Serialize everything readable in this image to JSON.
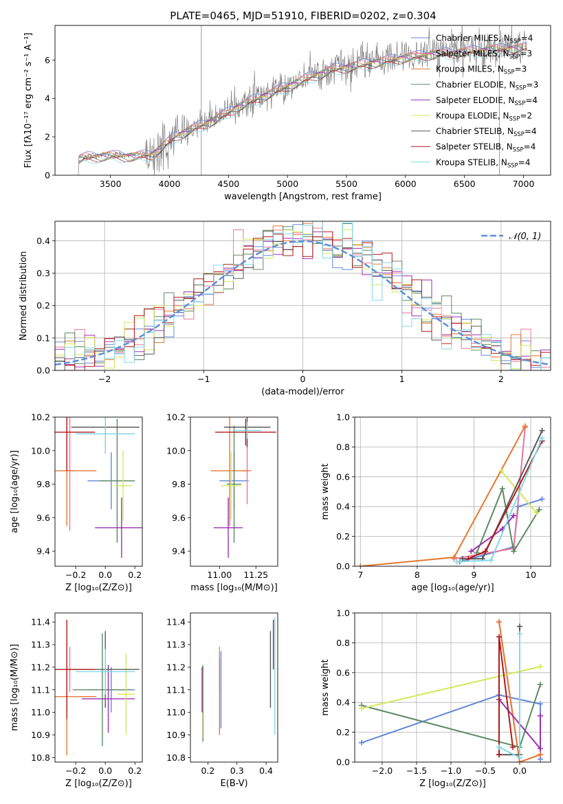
{
  "figure": {
    "title": "PLATE=0465, MJD=51910, FIBERID=0202, z=0.304"
  },
  "models": [
    {
      "name": "Chabrier MILES",
      "nssp": "4",
      "color": "#6287d9"
    },
    {
      "name": "Salpeter MILES",
      "nssp": "3",
      "color": "#e8769c"
    },
    {
      "name": "Kroupa MILES",
      "nssp": "3",
      "color": "#e6762e"
    },
    {
      "name": "Chabrier ELODIE",
      "nssp": "3",
      "color": "#5b8a62"
    },
    {
      "name": "Salpeter ELODIE",
      "nssp": "4",
      "color": "#9a2fb0"
    },
    {
      "name": "Kroupa ELODIE",
      "nssp": "2",
      "color": "#d4e85a"
    },
    {
      "name": "Chabrier STELIB",
      "nssp": "4",
      "color": "#585858"
    },
    {
      "name": "Salpeter STELIB",
      "nssp": "4",
      "color": "#b01818"
    },
    {
      "name": "Kroupa STELIB",
      "nssp": "4",
      "color": "#7fd8e8"
    }
  ],
  "chart_data": [
    {
      "id": "spectrum",
      "type": "line",
      "xlabel": "wavelength [Angstrom, rest frame]",
      "ylabel": "Flux [fλ10⁻¹⁷ erg cm⁻² s⁻¹ A⁻¹]",
      "xlim": [
        3030,
        7230
      ],
      "ylim": [
        0,
        7.8
      ],
      "xticks": [
        3500,
        4000,
        4500,
        5000,
        5500,
        6000,
        6500,
        7000
      ],
      "yticks": [
        0,
        2,
        4,
        6
      ],
      "data_color": "#808080",
      "continuum": {
        "x": [
          3200,
          3280,
          3500,
          3700,
          3850,
          3950,
          4050,
          4200,
          4400,
          4600,
          4800,
          5000,
          5200,
          5400,
          5600,
          5800,
          6000,
          6200,
          6400,
          6600,
          6800,
          7030
        ],
        "y": [
          0.85,
          1.0,
          1.1,
          1.05,
          1.15,
          1.6,
          2.1,
          2.5,
          3.0,
          3.7,
          4.2,
          4.7,
          5.2,
          5.6,
          5.8,
          6.0,
          6.2,
          6.35,
          6.45,
          6.55,
          6.65,
          6.7
        ]
      }
    },
    {
      "id": "residuals",
      "type": "area",
      "xlabel": "(data-model)/error",
      "ylabel": "Normed distribution",
      "xlim": [
        -2.5,
        2.5
      ],
      "ylim": [
        0,
        0.46
      ],
      "xticks": [
        -2,
        -1,
        0,
        1,
        2
      ],
      "yticks": [
        0.0,
        0.1,
        0.2,
        0.3,
        0.4
      ],
      "bin_width": 0.1,
      "gaussian_label": "𝒩(0, 1)",
      "gaussian_color": "#5b8fd9",
      "grid": true,
      "legend_position": "top-right"
    },
    {
      "id": "age-vs-Z",
      "type": "scatter",
      "xlabel": "Z [log₁₀(Z/Z⊙)]",
      "ylabel": "age  [log₁₀(age/yr)]",
      "xlim": [
        -0.34,
        0.25
      ],
      "ylim": [
        9.31,
        10.2
      ],
      "xticks": [
        -0.2,
        0.0,
        0.2
      ],
      "yticks": [
        9.4,
        9.6,
        9.8,
        10.0,
        10.2
      ],
      "series": [
        {
          "name": "Chabrier MILES",
          "x": 0.04,
          "y": 9.82,
          "xerr": 0.16,
          "yerr": 0.17
        },
        {
          "name": "Salpeter MILES",
          "x": -0.24,
          "y": 9.88,
          "xerr": 0.03,
          "yerr": 0.36
        },
        {
          "name": "Kroupa MILES",
          "x": -0.26,
          "y": 9.88,
          "xerr": 0.2,
          "yerr": 0.33
        },
        {
          "name": "Chabrier ELODIE",
          "x": 0.08,
          "y": 9.82,
          "xerr": 0.12,
          "yerr": 0.37
        },
        {
          "name": "Salpeter ELODIE",
          "x": 0.11,
          "y": 9.54,
          "xerr": 0.18,
          "yerr": 0.18
        },
        {
          "name": "Kroupa ELODIE",
          "x": 0.12,
          "y": 9.79,
          "xerr": 0.06,
          "yerr": 0.21
        },
        {
          "name": "Chabrier STELIB",
          "x": 0.0,
          "y": 10.14,
          "xerr": 0.23,
          "yerr": 0.12
        },
        {
          "name": "Salpeter STELIB",
          "x": -0.26,
          "y": 10.11,
          "xerr": 0.19,
          "yerr": 0.23
        },
        {
          "name": "Kroupa STELIB",
          "x": 0.0,
          "y": 10.1,
          "xerr": 0.2,
          "yerr": 0.12
        }
      ]
    },
    {
      "id": "age-vs-mass",
      "type": "scatter",
      "xlabel": "mass [log₁₀(M/M⊙)]",
      "ylabel": "",
      "xlim": [
        10.8,
        11.4
      ],
      "ylim": [
        9.31,
        10.2
      ],
      "xticks": [
        11.0,
        11.25
      ],
      "yticks": [
        9.4,
        9.6,
        9.8,
        10.0,
        10.2
      ],
      "series": [
        {
          "name": "Chabrier MILES",
          "x": 11.1,
          "y": 9.82,
          "xerr": 0.1,
          "yerr": 0.17
        },
        {
          "name": "Salpeter MILES",
          "x": 11.19,
          "y": 9.88,
          "xerr": 0.03,
          "yerr": 0.2
        },
        {
          "name": "Kroupa MILES",
          "x": 11.07,
          "y": 9.88,
          "xerr": 0.13,
          "yerr": 0.33
        },
        {
          "name": "Chabrier ELODIE",
          "x": 11.1,
          "y": 9.8,
          "xerr": 0.05,
          "yerr": 0.35
        },
        {
          "name": "Salpeter ELODIE",
          "x": 11.06,
          "y": 9.54,
          "xerr": 0.1,
          "yerr": 0.18
        },
        {
          "name": "Kroupa ELODIE",
          "x": 11.08,
          "y": 9.79,
          "xerr": 0.07,
          "yerr": 0.2
        },
        {
          "name": "Chabrier STELIB",
          "x": 11.19,
          "y": 10.14,
          "xerr": 0.16,
          "yerr": 0.12
        },
        {
          "name": "Salpeter STELIB",
          "x": 11.18,
          "y": 10.11,
          "xerr": 0.21,
          "yerr": 0.08
        },
        {
          "name": "Kroupa STELIB",
          "x": 11.19,
          "y": 10.12,
          "xerr": 0.1,
          "yerr": 0.05
        }
      ]
    },
    {
      "id": "mass-weight-vs-age",
      "type": "line",
      "xlabel": "age  [log₁₀(age/yr)]",
      "ylabel": "mass weight",
      "xlim": [
        6.9,
        10.35
      ],
      "ylim": [
        0,
        1.0
      ],
      "xticks": [
        7,
        8,
        9,
        10
      ],
      "yticks": [
        0.0,
        0.2,
        0.4,
        0.6,
        0.8,
        1.0
      ],
      "grid": true,
      "series": [
        {
          "name": "Chabrier MILES",
          "x": [
            8.75,
            9.7,
            9.78,
            10.2
          ],
          "y": [
            0.03,
            0.13,
            0.4,
            0.45
          ]
        },
        {
          "name": "Salpeter MILES",
          "x": [
            8.65,
            9.7,
            9.9
          ],
          "y": [
            0.05,
            0.12,
            0.93
          ]
        },
        {
          "name": "Kroupa MILES",
          "x": [
            7.0,
            8.65,
            9.9
          ],
          "y": [
            0.0,
            0.06,
            0.94
          ]
        },
        {
          "name": "Chabrier ELODIE",
          "x": [
            9.05,
            9.5,
            9.7,
            10.15
          ],
          "y": [
            0.09,
            0.52,
            0.1,
            0.38
          ]
        },
        {
          "name": "Salpeter ELODIE",
          "x": [
            8.95,
            9.5,
            9.7
          ],
          "y": [
            0.1,
            0.25,
            0.34
          ]
        },
        {
          "name": "Kroupa ELODIE",
          "x": [
            9.48,
            10.1
          ],
          "y": [
            0.64,
            0.36
          ]
        },
        {
          "name": "Chabrier STELIB",
          "x": [
            8.8,
            9.15,
            10.2
          ],
          "y": [
            0.05,
            0.05,
            0.91
          ]
        },
        {
          "name": "Salpeter STELIB",
          "x": [
            8.9,
            9.2,
            10.2
          ],
          "y": [
            0.05,
            0.1,
            0.84
          ]
        },
        {
          "name": "Kroupa STELIB",
          "x": [
            8.7,
            9.3,
            10.2
          ],
          "y": [
            0.03,
            0.04,
            0.86
          ]
        }
      ]
    },
    {
      "id": "mass-vs-Z",
      "type": "scatter",
      "xlabel": "Z [log₁₀(Z/Z⊙)]",
      "ylabel": "mass [log₁₀(M/M⊙)]",
      "xlim": [
        -0.34,
        0.25
      ],
      "ylim": [
        10.78,
        11.44
      ],
      "xticks": [
        -0.2,
        0.0,
        0.2
      ],
      "yticks": [
        10.8,
        10.9,
        11.0,
        11.1,
        11.2,
        11.3,
        11.4
      ],
      "series": [
        {
          "name": "Chabrier MILES",
          "x": 0.04,
          "y": 11.1,
          "xerr": 0.16,
          "yerr": 0.1
        },
        {
          "name": "Salpeter MILES",
          "x": -0.24,
          "y": 11.19,
          "xerr": 0.03,
          "yerr": 0.1
        },
        {
          "name": "Kroupa MILES",
          "x": -0.26,
          "y": 11.07,
          "xerr": 0.2,
          "yerr": 0.26
        },
        {
          "name": "Chabrier ELODIE",
          "x": -0.02,
          "y": 11.1,
          "xerr": 0.2,
          "yerr": 0.25
        },
        {
          "name": "Salpeter ELODIE",
          "x": 0.02,
          "y": 11.06,
          "xerr": 0.18,
          "yerr": 0.15
        },
        {
          "name": "Kroupa ELODIE",
          "x": 0.14,
          "y": 11.08,
          "xerr": 0.06,
          "yerr": 0.18
        },
        {
          "name": "Chabrier STELIB",
          "x": 0.0,
          "y": 11.19,
          "xerr": 0.23,
          "yerr": 0.17
        },
        {
          "name": "Salpeter STELIB",
          "x": -0.26,
          "y": 11.19,
          "xerr": 0.19,
          "yerr": 0.22
        },
        {
          "name": "Kroupa STELIB",
          "x": 0.0,
          "y": 11.18,
          "xerr": 0.2,
          "yerr": 0.1
        }
      ]
    },
    {
      "id": "mass-vs-EBV",
      "type": "scatter",
      "xlabel": "E(B-V)",
      "ylabel": "",
      "xlim": [
        0.14,
        0.44
      ],
      "ylim": [
        10.78,
        11.44
      ],
      "xticks": [
        0.2,
        0.3,
        0.4
      ],
      "yticks": [
        10.8,
        10.9,
        11.0,
        11.1,
        11.2,
        11.3,
        11.4
      ],
      "series": [
        {
          "name": "Chabrier MILES",
          "x": 0.245,
          "y": 11.1,
          "yerr": 0.17
        },
        {
          "name": "Salpeter MILES",
          "x": 0.24,
          "y": 11.19,
          "yerr": 0.1
        },
        {
          "name": "Kroupa MILES",
          "x": 0.24,
          "y": 11.07,
          "yerr": 0.17
        },
        {
          "name": "Chabrier ELODIE",
          "x": 0.183,
          "y": 11.04,
          "yerr": 0.17
        },
        {
          "name": "Salpeter ELODIE",
          "x": 0.18,
          "y": 11.1,
          "yerr": 0.1
        },
        {
          "name": "Kroupa ELODIE",
          "x": 0.185,
          "y": 11.04,
          "yerr": 0.15
        },
        {
          "name": "Chabrier STELIB",
          "x": 0.415,
          "y": 11.19,
          "yerr": 0.17
        },
        {
          "name": "Salpeter STELIB",
          "x": 0.425,
          "y": 11.3,
          "yerr": 0.11
        },
        {
          "name": "Kroupa STELIB",
          "x": 0.43,
          "y": 11.16,
          "yerr": 0.26
        }
      ]
    },
    {
      "id": "mass-weight-vs-Z",
      "type": "line",
      "xlabel": "Z [log₁₀(Z/Z⊙)]",
      "ylabel": "mass weight",
      "xlim": [
        -2.4,
        0.45
      ],
      "ylim": [
        0,
        1.0
      ],
      "xticks": [
        -2.0,
        -1.5,
        -1.0,
        -0.5,
        0.0
      ],
      "yticks": [
        0.0,
        0.2,
        0.4,
        0.6,
        0.8,
        1.0
      ],
      "grid": true,
      "series": [
        {
          "name": "Chabrier MILES",
          "x": [
            -2.3,
            -0.3,
            0.3,
            0.3
          ],
          "y": [
            0.13,
            0.45,
            0.39,
            0.02
          ]
        },
        {
          "name": "Salpeter MILES",
          "x": [
            -0.3,
            0.0,
            0.3
          ],
          "y": [
            0.94,
            0.0,
            0.05
          ]
        },
        {
          "name": "Kroupa MILES",
          "x": [
            -0.3,
            0.0,
            0.3
          ],
          "y": [
            0.94,
            0.0,
            0.05
          ]
        },
        {
          "name": "Chabrier ELODIE",
          "x": [
            -2.3,
            0.0,
            0.3
          ],
          "y": [
            0.38,
            0.1,
            0.52
          ]
        },
        {
          "name": "Salpeter ELODIE",
          "x": [
            -0.3,
            0.3,
            0.3
          ],
          "y": [
            0.42,
            0.09,
            0.31
          ]
        },
        {
          "name": "Kroupa ELODIE",
          "x": [
            -2.3,
            0.3
          ],
          "y": [
            0.36,
            0.64
          ]
        },
        {
          "name": "Chabrier STELIB",
          "x": [
            -0.3,
            -0.3,
            0.0,
            0.0
          ],
          "y": [
            0.05,
            0.05,
            0.05,
            0.91
          ]
        },
        {
          "name": "Salpeter STELIB",
          "x": [
            -0.3,
            -0.3,
            -0.1
          ],
          "y": [
            0.05,
            0.84,
            0.1
          ]
        },
        {
          "name": "Kroupa STELIB",
          "x": [
            -0.3,
            0.0,
            0.0
          ],
          "y": [
            0.1,
            0.03,
            0.86
          ]
        }
      ]
    }
  ]
}
